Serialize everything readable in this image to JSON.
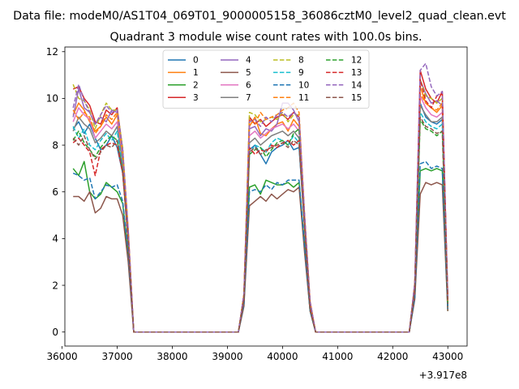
{
  "chart_data": {
    "type": "line",
    "suptitle": "Data file: modeM0/AS1T04_069T01_9000005158_36086cztM0_level2_quad_clean.evt",
    "title": "Quadrant 3 module wise count rates with 100.0s bins.",
    "xlabel": "",
    "ylabel": "",
    "x_offset_label": "+3.917e8",
    "xlim": [
      36050,
      43350
    ],
    "ylim": [
      -0.6,
      12.2
    ],
    "xticks": [
      36000,
      37000,
      38000,
      39000,
      40000,
      41000,
      42000,
      43000
    ],
    "yticks": [
      0,
      2,
      4,
      6,
      8,
      10,
      12
    ],
    "grid": false,
    "legend": {
      "placement": "upper-center",
      "columns": 4
    },
    "x": {
      "seg1": [
        36200,
        36300,
        36400,
        36500,
        36600,
        36700,
        36800,
        36900,
        37000,
        37100,
        37200
      ],
      "gap1": [
        37300,
        38000,
        39000,
        39200
      ],
      "seg2": [
        39300,
        39400,
        39500,
        39600,
        39700,
        39800,
        39900,
        40000,
        40100,
        40200,
        40300,
        40400,
        40500
      ],
      "gap2": [
        40600,
        41000,
        42000,
        42300
      ],
      "seg3": [
        42400,
        42500,
        42600,
        42700,
        42800,
        42900,
        43000
      ]
    },
    "series": [
      {
        "name": "0",
        "style": "solid",
        "color": "#1f77b4",
        "values": {
          "seg1": [
            8.7,
            9.0,
            8.5,
            8.9,
            8.3,
            7.8,
            8.0,
            8.4,
            7.9,
            6.8,
            4.0
          ],
          "seg2": [
            1.5,
            7.8,
            8.0,
            7.6,
            7.2,
            7.7,
            7.9,
            8.0,
            8.2,
            7.8,
            7.9,
            4.5,
            1.0
          ],
          "seg3": [
            1.8,
            9.8,
            9.2,
            9.0,
            8.9,
            9.1,
            1.1
          ]
        }
      },
      {
        "name": "1",
        "style": "solid",
        "color": "#ff7f0e",
        "values": {
          "seg1": [
            9.3,
            9.8,
            9.5,
            9.0,
            8.6,
            8.8,
            9.2,
            8.9,
            9.3,
            7.5,
            4.2
          ],
          "seg2": [
            1.6,
            8.8,
            9.2,
            8.5,
            8.4,
            8.7,
            8.9,
            9.0,
            8.6,
            9.1,
            8.8,
            4.8,
            1.2
          ],
          "seg3": [
            2.0,
            10.5,
            9.8,
            9.6,
            9.4,
            9.7,
            1.3
          ]
        }
      },
      {
        "name": "2",
        "style": "solid",
        "color": "#2ca02c",
        "values": {
          "seg1": [
            7.0,
            6.7,
            7.3,
            6.0,
            5.7,
            5.9,
            6.4,
            6.2,
            6.0,
            5.5,
            3.3
          ],
          "seg2": [
            1.2,
            6.2,
            6.3,
            5.9,
            6.5,
            6.4,
            6.3,
            6.3,
            6.4,
            6.2,
            6.4,
            3.7,
            0.9
          ],
          "seg3": [
            1.5,
            6.9,
            7.0,
            6.9,
            7.0,
            6.9,
            0.9
          ]
        }
      },
      {
        "name": "3",
        "style": "solid",
        "color": "#d62728",
        "values": {
          "seg1": [
            10.4,
            10.5,
            10.0,
            9.7,
            9.0,
            8.9,
            9.5,
            9.3,
            9.6,
            7.8,
            4.4
          ],
          "seg2": [
            1.6,
            9.2,
            8.9,
            9.1,
            8.8,
            9.0,
            9.2,
            9.3,
            9.1,
            9.4,
            9.2,
            5.0,
            1.3
          ],
          "seg3": [
            2.1,
            11.2,
            10.4,
            10.0,
            9.8,
            10.3,
            1.4
          ]
        }
      },
      {
        "name": "4",
        "style": "solid",
        "color": "#9467bd",
        "values": {
          "seg1": [
            9.2,
            10.4,
            9.6,
            9.4,
            8.9,
            9.2,
            9.0,
            9.5,
            9.4,
            7.7,
            4.3
          ],
          "seg2": [
            1.6,
            8.7,
            8.8,
            8.4,
            8.7,
            8.6,
            8.9,
            9.8,
            9.8,
            9.5,
            9.0,
            4.9,
            1.2
          ],
          "seg3": [
            2.0,
            10.8,
            10.2,
            9.8,
            9.9,
            9.7,
            1.4
          ]
        }
      },
      {
        "name": "5",
        "style": "solid",
        "color": "#8c564b",
        "values": {
          "seg1": [
            5.8,
            5.8,
            5.6,
            6.0,
            5.1,
            5.3,
            5.8,
            5.7,
            5.7,
            5.0,
            3.0
          ],
          "seg2": [
            1.1,
            5.4,
            5.6,
            5.8,
            5.6,
            5.9,
            5.7,
            5.9,
            6.1,
            6.0,
            6.2,
            3.4,
            0.9
          ],
          "seg3": [
            1.4,
            5.9,
            6.4,
            6.3,
            6.4,
            6.3,
            0.9
          ]
        }
      },
      {
        "name": "6",
        "style": "solid",
        "color": "#e377c2",
        "values": {
          "seg1": [
            9.0,
            9.6,
            9.3,
            9.1,
            8.3,
            8.6,
            8.9,
            8.7,
            9.0,
            7.4,
            4.1
          ],
          "seg2": [
            1.5,
            8.4,
            8.6,
            8.3,
            8.5,
            8.7,
            8.8,
            8.9,
            8.7,
            8.9,
            8.6,
            4.7,
            1.1
          ],
          "seg3": [
            1.9,
            10.1,
            9.6,
            9.3,
            9.2,
            9.4,
            1.3
          ]
        }
      },
      {
        "name": "7",
        "style": "solid",
        "color": "#7f7f7f",
        "values": {
          "seg1": [
            8.6,
            9.2,
            8.9,
            8.7,
            8.1,
            8.3,
            8.6,
            8.4,
            8.8,
            7.2,
            4.0
          ],
          "seg2": [
            1.5,
            8.1,
            8.3,
            8.0,
            8.2,
            8.4,
            8.5,
            8.6,
            8.4,
            8.6,
            8.3,
            4.6,
            1.1
          ],
          "seg3": [
            1.9,
            9.7,
            9.3,
            9.0,
            9.0,
            9.2,
            1.2
          ]
        }
      },
      {
        "name": "8",
        "style": "dashed",
        "color": "#bcbd22",
        "values": {
          "seg1": [
            10.6,
            10.0,
            9.9,
            9.5,
            8.7,
            9.3,
            9.8,
            9.5,
            9.5,
            7.9,
            4.3
          ],
          "seg2": [
            1.6,
            9.4,
            9.3,
            9.0,
            9.1,
            9.2,
            9.1,
            9.4,
            9.0,
            9.3,
            9.3,
            5.0,
            1.3
          ],
          "seg3": [
            2.1,
            10.8,
            10.1,
            10.0,
            9.8,
            10.0,
            1.4
          ]
        }
      },
      {
        "name": "9",
        "style": "dashed",
        "color": "#17becf",
        "values": {
          "seg1": [
            8.8,
            8.3,
            8.7,
            8.0,
            7.8,
            8.2,
            8.5,
            8.2,
            8.6,
            7.0,
            3.9
          ],
          "seg2": [
            1.4,
            7.6,
            8.0,
            7.9,
            7.7,
            8.1,
            8.3,
            8.2,
            8.0,
            8.4,
            8.1,
            4.5,
            1.0
          ],
          "seg3": [
            1.8,
            9.4,
            9.0,
            8.8,
            8.7,
            8.9,
            1.2
          ]
        }
      },
      {
        "name": "10",
        "style": "dashed",
        "color": "#1f77b4",
        "values": {
          "seg1": [
            6.8,
            6.7,
            6.5,
            6.6,
            5.7,
            6.0,
            6.3,
            6.2,
            6.3,
            5.6,
            3.4
          ],
          "seg2": [
            1.2,
            6.0,
            6.1,
            6.0,
            6.3,
            6.1,
            6.4,
            6.3,
            6.5,
            6.5,
            6.5,
            3.7,
            0.9
          ],
          "seg3": [
            1.5,
            7.2,
            7.3,
            7.0,
            7.1,
            7.0,
            1.0
          ]
        }
      },
      {
        "name": "11",
        "style": "dashed",
        "color": "#ff7f0e",
        "values": {
          "seg1": [
            9.5,
            9.1,
            9.4,
            9.2,
            8.5,
            8.8,
            9.3,
            9.1,
            9.4,
            7.6,
            4.2
          ],
          "seg2": [
            1.6,
            9.1,
            8.9,
            9.4,
            9.1,
            9.2,
            9.3,
            9.5,
            9.6,
            9.8,
            9.4,
            5.0,
            1.3
          ],
          "seg3": [
            2.0,
            10.2,
            9.8,
            9.6,
            9.5,
            9.8,
            1.3
          ]
        }
      },
      {
        "name": "12",
        "style": "dashed",
        "color": "#2ca02c",
        "values": {
          "seg1": [
            8.2,
            8.6,
            8.1,
            7.8,
            7.5,
            7.9,
            8.2,
            8.4,
            8.2,
            6.9,
            3.9
          ],
          "seg2": [
            1.4,
            7.6,
            7.8,
            7.9,
            7.5,
            7.8,
            8.1,
            8.2,
            8.0,
            8.5,
            8.7,
            4.5,
            1.0
          ],
          "seg3": [
            1.8,
            9.1,
            8.7,
            8.6,
            8.4,
            8.6,
            1.2
          ]
        }
      },
      {
        "name": "13",
        "style": "dashed",
        "color": "#d62728",
        "values": {
          "seg1": [
            8.1,
            8.3,
            8.0,
            7.7,
            6.7,
            7.8,
            8.0,
            8.1,
            8.0,
            6.8,
            3.9
          ],
          "seg2": [
            1.4,
            7.9,
            7.6,
            7.8,
            7.7,
            8.0,
            7.9,
            8.1,
            8.2,
            8.0,
            8.2,
            4.5,
            1.0
          ],
          "seg3": [
            1.8,
            10.8,
            9.9,
            9.6,
            10.1,
            10.2,
            1.4
          ]
        }
      },
      {
        "name": "14",
        "style": "dashed",
        "color": "#9467bd",
        "values": {
          "seg1": [
            9.6,
            10.6,
            9.9,
            9.4,
            8.9,
            9.3,
            9.7,
            9.4,
            9.5,
            7.8,
            4.3
          ],
          "seg2": [
            1.6,
            9.0,
            9.1,
            8.8,
            9.2,
            9.0,
            9.3,
            9.4,
            9.2,
            9.4,
            9.2,
            5.0,
            1.3
          ],
          "seg3": [
            2.1,
            11.2,
            11.5,
            10.5,
            10.1,
            10.3,
            1.5
          ]
        }
      },
      {
        "name": "15",
        "style": "dashed",
        "color": "#8c564b",
        "values": {
          "seg1": [
            8.3,
            8.0,
            8.4,
            7.8,
            7.4,
            7.7,
            8.0,
            7.9,
            8.2,
            6.9,
            3.8
          ],
          "seg2": [
            1.4,
            7.7,
            7.9,
            7.6,
            7.8,
            7.9,
            8.0,
            8.1,
            7.9,
            8.2,
            8.0,
            4.5,
            1.0
          ],
          "seg3": [
            1.8,
            9.2,
            8.8,
            8.7,
            8.5,
            8.6,
            1.2
          ]
        }
      }
    ]
  }
}
